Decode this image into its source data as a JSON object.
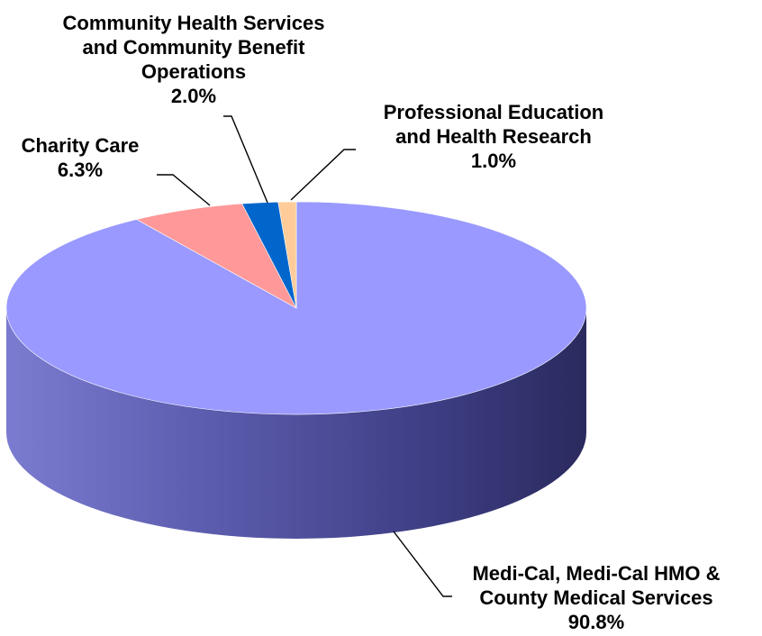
{
  "chart_data": {
    "type": "pie",
    "style": "3d",
    "title": "",
    "slices": [
      {
        "label_lines": [
          "Medi-Cal, Medi-Cal HMO &",
          "County Medical Services"
        ],
        "value": 90.8,
        "value_label": "90.8%",
        "color": "#9999ff"
      },
      {
        "label_lines": [
          "Charity Care"
        ],
        "value": 6.3,
        "value_label": "6.3%",
        "color": "#ff9999"
      },
      {
        "label_lines": [
          "Community Health Services",
          "and Community Benefit",
          "Operations"
        ],
        "value": 2.0,
        "value_label": "2.0%",
        "color": "#0066cc"
      },
      {
        "label_lines": [
          "Professional Education",
          "and Health Research"
        ],
        "value": 1.0,
        "value_label": "1.0%",
        "color": "#ffcc99"
      }
    ],
    "legend": "none",
    "labels": "outside-with-leader-lines"
  }
}
